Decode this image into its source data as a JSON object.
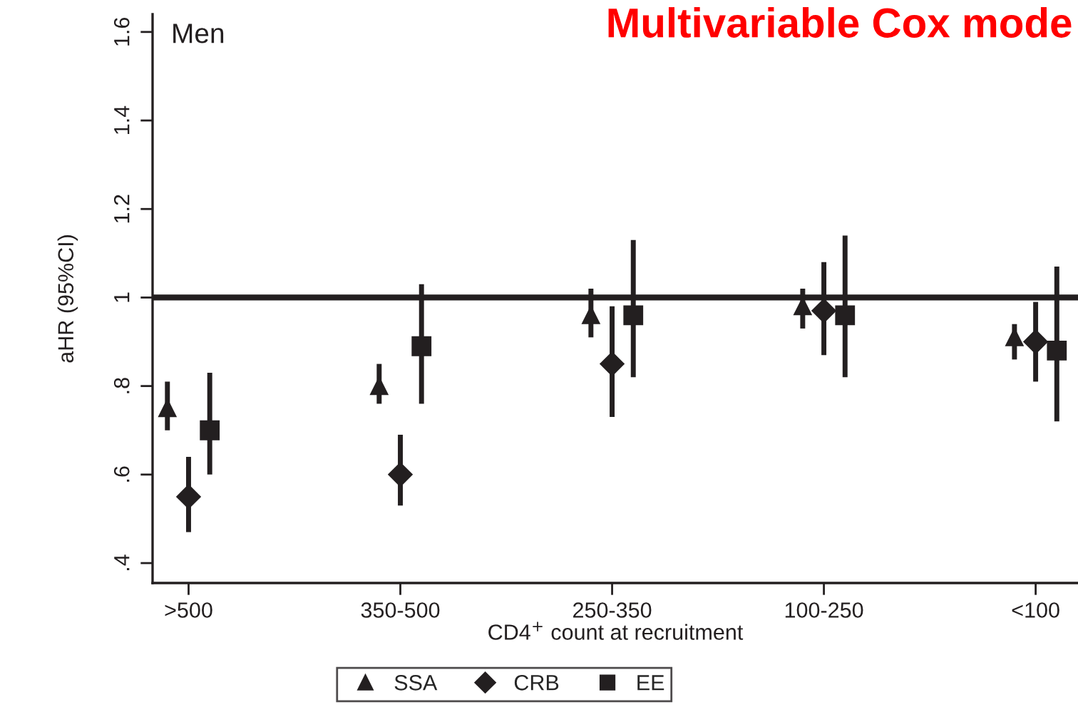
{
  "chart_data": {
    "type": "scatter",
    "title": "Multivariable Cox mode",
    "xlabel": "CD4$^{+}$ count at recruitment",
    "ylabel": "aHR (95%CI)",
    "annotations": [
      "Men"
    ],
    "categories": [
      ">500",
      "350-500",
      "250-350",
      "100-250",
      "<100"
    ],
    "series": [
      {
        "name": "SSA",
        "color": "#231f20",
        "marker": "triangle",
        "values": [
          0.75,
          0.8,
          0.96,
          0.98,
          0.91
        ],
        "errors": [
          [
            0.7,
            0.81
          ],
          [
            0.76,
            0.85
          ],
          [
            0.91,
            1.02
          ],
          [
            0.93,
            1.02
          ],
          [
            0.86,
            0.94
          ]
        ]
      },
      {
        "name": "CRB",
        "color": "#231f20",
        "marker": "diamond",
        "values": [
          0.55,
          0.6,
          0.85,
          0.97,
          0.9
        ],
        "errors": [
          [
            0.47,
            0.64
          ],
          [
            0.53,
            0.69
          ],
          [
            0.73,
            0.98
          ],
          [
            0.87,
            1.08
          ],
          [
            0.81,
            0.99
          ]
        ]
      },
      {
        "name": "EE",
        "color": "#231f20",
        "marker": "square",
        "values": [
          0.7,
          0.89,
          0.96,
          0.96,
          0.88
        ],
        "errors": [
          [
            0.6,
            0.83
          ],
          [
            0.76,
            1.03
          ],
          [
            0.82,
            1.13
          ],
          [
            0.82,
            1.14
          ],
          [
            0.72,
            1.07
          ]
        ]
      }
    ],
    "ylim": [
      0.355,
      1.64
    ],
    "yticks": [
      {
        "value": 0.4,
        "label": ".4"
      },
      {
        "value": 0.6,
        "label": ".6"
      },
      {
        "value": 0.8,
        "label": ".8"
      },
      1,
      1.2,
      1.4,
      1.6
    ],
    "ref_lines": [
      {
        "axis": "y",
        "value": 1,
        "color": "#231f20"
      }
    ],
    "grid": false,
    "legend": "bottom"
  }
}
